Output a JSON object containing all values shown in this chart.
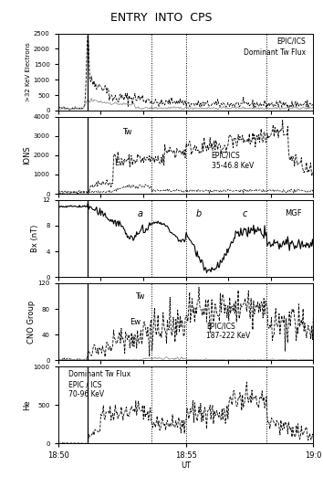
{
  "title": "ENTRY  INTO  CPS",
  "time_start": 0,
  "time_end": 600,
  "x_tick_labels": [
    "18:50",
    "18:55",
    "19:0"
  ],
  "x_tick_positions": [
    0,
    300,
    600
  ],
  "xlabel": "UT",
  "vlines_dashed": [
    70,
    220,
    300,
    490
  ],
  "vlines_solid": [
    70
  ],
  "panel1": {
    "ylabel": ">32 KeV Electrons",
    "ylim": [
      0,
      2500
    ],
    "yticks": [
      0,
      500,
      1000,
      1500,
      2000,
      2500
    ],
    "label1": "EPIC/ICS",
    "label2": "Dominant Tw Flux"
  },
  "panel2": {
    "ylabel": "IONS",
    "ylim": [
      0,
      4000
    ],
    "yticks": [
      0,
      1000,
      2000,
      3000,
      4000
    ],
    "label1": "Tw",
    "label2": "Ew",
    "label3": "EPIC/ICS",
    "label4": "35-46.8 KeV"
  },
  "panel3": {
    "ylabel": "Bx (nT)",
    "ylim": [
      0,
      12
    ],
    "yticks": [
      0,
      4,
      8,
      12
    ],
    "label_a": "a",
    "label_b": "b",
    "label_c": "c",
    "label_mgf": "MGF"
  },
  "panel4": {
    "ylabel": "CNO Group",
    "ylim": [
      0,
      120
    ],
    "yticks": [
      0,
      40,
      80,
      120
    ],
    "label1": "Tw",
    "label2": "Ew",
    "label3": "EPIC/ICS",
    "label4": "187-222 KeV"
  },
  "panel5": {
    "ylabel": "He",
    "ylim": [
      0,
      1000
    ],
    "yticks": [
      0,
      500,
      1000
    ],
    "label1": "Dominant Tw Flux",
    "label2": "EPIC / ICS",
    "label3": "70-96 KeV"
  },
  "bg_color": "#ffffff",
  "line_color": "#000000",
  "light_line_color": "#aaaaaa"
}
